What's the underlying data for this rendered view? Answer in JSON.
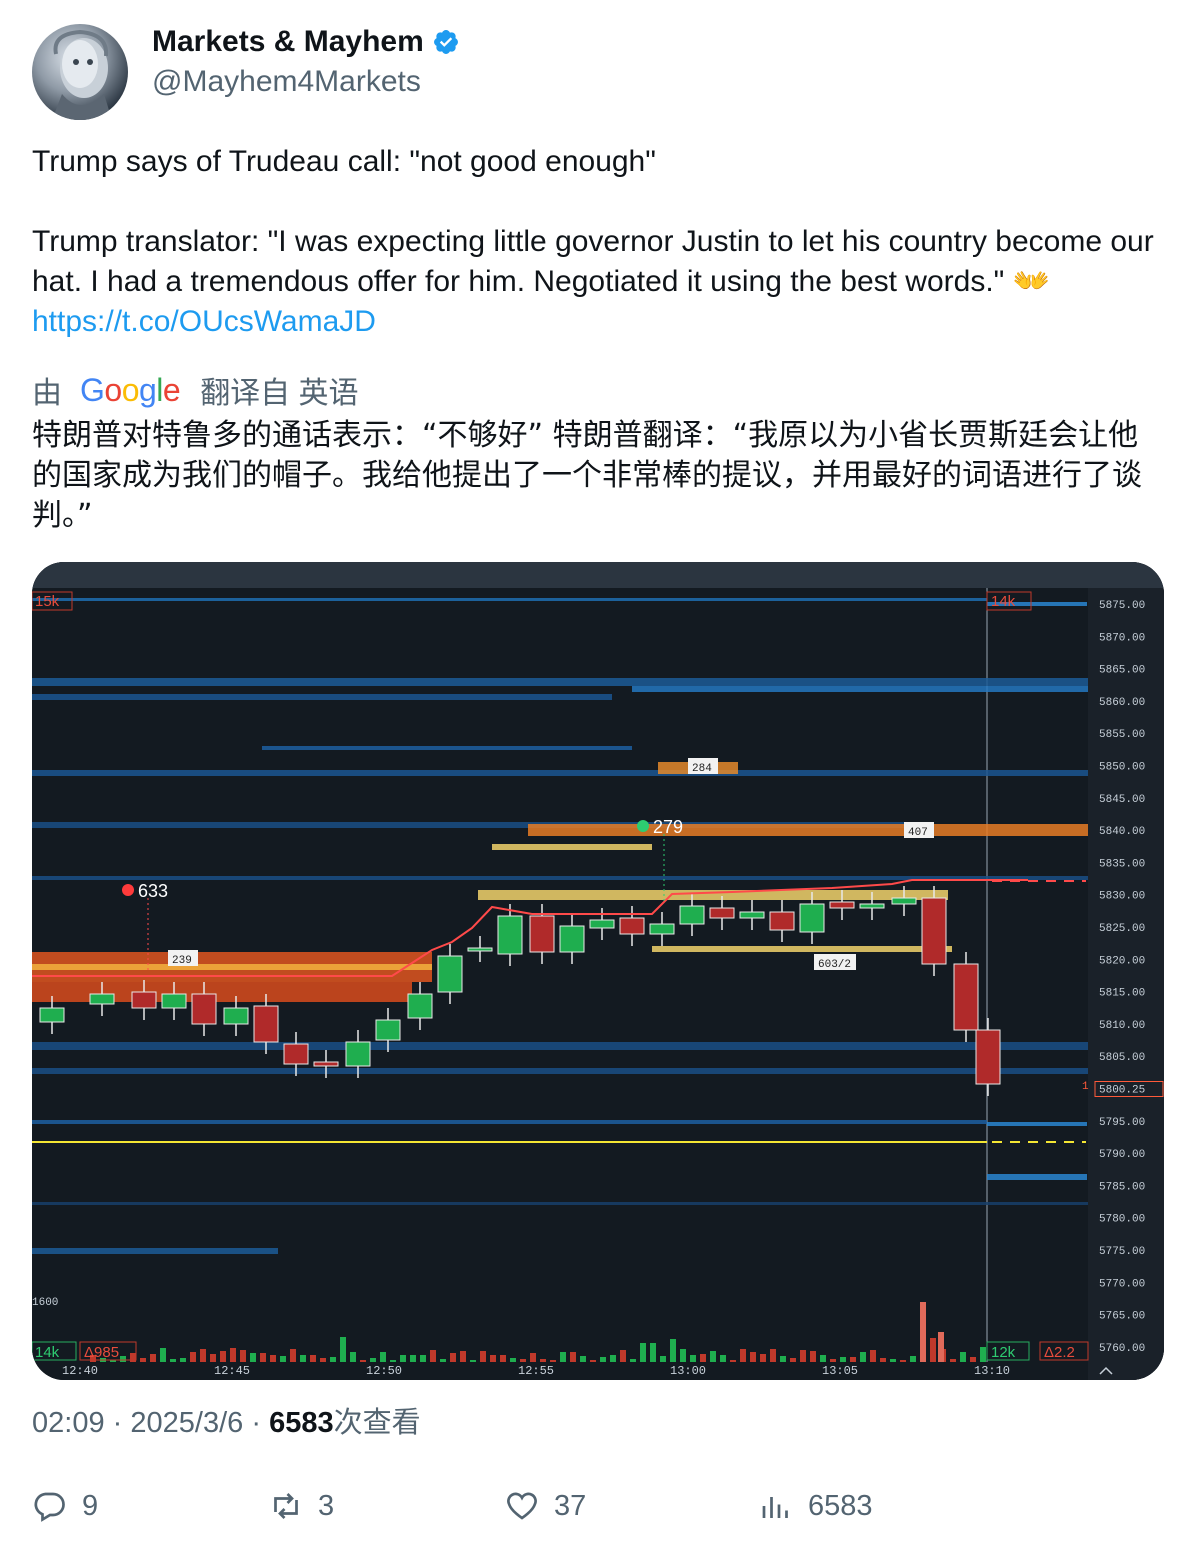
{
  "author": {
    "display_name": "Markets & Mayhem",
    "handle": "@Mayhem4Markets",
    "verified": true,
    "verified_color": "#1d9bf0"
  },
  "tweet": {
    "line1": "Trump says of Trudeau call: \"not good enough\"",
    "body": "Trump translator: \"I was expecting little governor Justin to let his country become our hat. I had a tremendous offer for him. Negotiated it using the best words.\"",
    "emoji": "👐",
    "link": "https://t.co/OUcsWamaJD",
    "link_color": "#1d9bf0"
  },
  "translation": {
    "prefix": "由",
    "provider": "Google",
    "suffix": "翻译自 英语",
    "text": "特朗普对特鲁多的通话表示：“不够好” 特朗普翻译：“我原以为小省长贾斯廷会让他的国家成为我们的帽子。我给他提出了一个非常棒的提议，并用最好的词语进行了谈判。”"
  },
  "chart": {
    "price_labels": [
      "5875.00",
      "5870.00",
      "5865.00",
      "5860.00",
      "5855.00",
      "5850.00",
      "5845.00",
      "5840.00",
      "5835.00",
      "5830.00",
      "5825.00",
      "5820.00",
      "5815.00",
      "5810.00",
      "5805.00",
      "5800.25",
      "5795.00",
      "5790.00",
      "5785.00",
      "5780.00",
      "5775.00",
      "5770.00",
      "5765.00",
      "5760.00"
    ],
    "time_labels": [
      "12:40",
      "12:45",
      "12:50",
      "12:55",
      "13:00",
      "13:05",
      "13:10"
    ],
    "corner_top_left": "15k",
    "corner_top_right": "14k",
    "bottom_left_vol": "14k",
    "bottom_left_delta": "Δ985",
    "bottom_right_vol": "12k",
    "bottom_right_delta": "Δ2.2",
    "volume_scale": "1600",
    "callout_633": "633",
    "callout_279": "279",
    "box_239": "239",
    "box_284": "284",
    "box_407": "407",
    "box_603": "603/2",
    "current_marker": "1"
  },
  "meta": {
    "time": "02:09",
    "sep": "·",
    "date": "2025/3/6",
    "views_count": "6583",
    "views_suffix": "次查看"
  },
  "actions": {
    "replies": "9",
    "reposts": "3",
    "likes": "37",
    "views": "6583"
  }
}
